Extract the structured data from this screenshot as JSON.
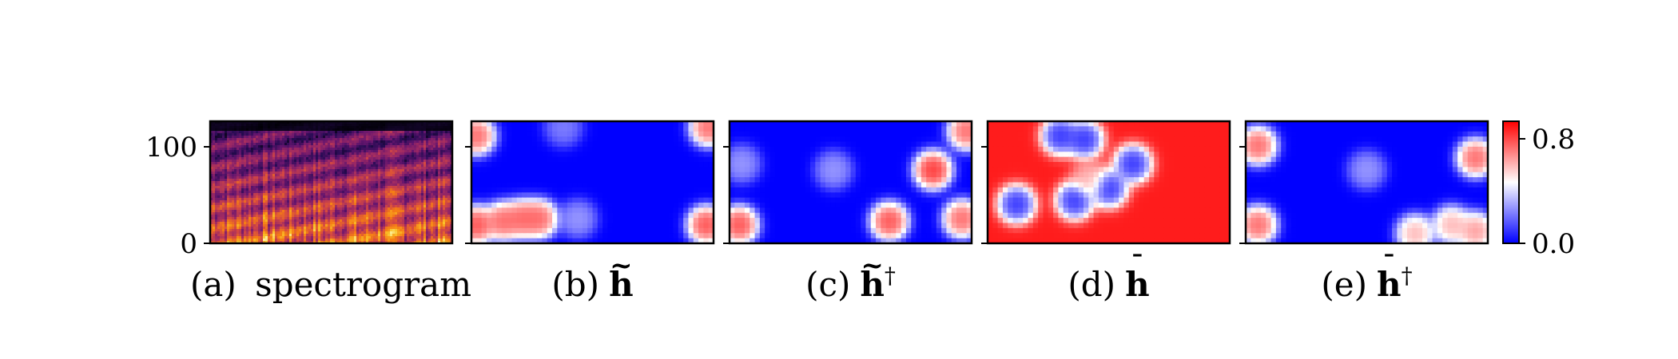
{
  "chart_data": [
    {
      "type": "heatmap",
      "panel": "a",
      "caption_prefix": "(a)",
      "caption_text": "spectrogram",
      "caption_math": "",
      "caption_sup": "",
      "y_ticks": [
        0,
        100
      ],
      "ylim": [
        0,
        128
      ],
      "colormap": "magma",
      "description_values": "mel spectrogram intensity (normalized)"
    },
    {
      "type": "heatmap",
      "panel": "b",
      "caption_prefix": "(b)",
      "caption_text": "",
      "caption_math": "h",
      "caption_accent": "~",
      "caption_sup": "",
      "colormap": "bwr",
      "blobs": [
        {
          "x": 0.02,
          "y": 0.12,
          "v": 0.8
        },
        {
          "x": 0.98,
          "y": 0.05,
          "v": 0.8
        },
        {
          "x": 0.02,
          "y": 0.85,
          "v": 0.85
        },
        {
          "x": 0.13,
          "y": 0.82,
          "v": 0.8
        },
        {
          "x": 0.21,
          "y": 0.8,
          "v": 0.8
        },
        {
          "x": 0.28,
          "y": 0.8,
          "v": 0.8
        },
        {
          "x": 0.44,
          "y": 0.8,
          "v": 0.3
        },
        {
          "x": 0.97,
          "y": 0.85,
          "v": 0.85
        },
        {
          "x": 0.38,
          "y": 0.05,
          "v": 0.25
        }
      ]
    },
    {
      "type": "heatmap",
      "panel": "c",
      "caption_prefix": "(c)",
      "caption_text": "",
      "caption_math": "h",
      "caption_accent": "~",
      "caption_sup": "†",
      "colormap": "bwr",
      "blobs": [
        {
          "x": 0.04,
          "y": 0.85,
          "v": 0.85
        },
        {
          "x": 0.98,
          "y": 0.08,
          "v": 0.8
        },
        {
          "x": 0.84,
          "y": 0.4,
          "v": 0.9
        },
        {
          "x": 0.66,
          "y": 0.82,
          "v": 0.85
        },
        {
          "x": 0.96,
          "y": 0.8,
          "v": 0.8
        },
        {
          "x": 0.43,
          "y": 0.4,
          "v": 0.3
        },
        {
          "x": 0.05,
          "y": 0.35,
          "v": 0.3
        }
      ]
    },
    {
      "type": "heatmap",
      "panel": "d",
      "caption_prefix": "(d)",
      "caption_text": "",
      "caption_math": "h",
      "caption_accent": "¯",
      "caption_sup": "",
      "colormap": "bwr",
      "background_value": 0.85,
      "blobs": [
        {
          "x": 0.12,
          "y": 0.68,
          "v": 0.0
        },
        {
          "x": 0.3,
          "y": 0.12,
          "v": 0.0
        },
        {
          "x": 0.4,
          "y": 0.15,
          "v": 0.0
        },
        {
          "x": 0.36,
          "y": 0.65,
          "v": 0.0
        },
        {
          "x": 0.5,
          "y": 0.55,
          "v": 0.0
        },
        {
          "x": 0.6,
          "y": 0.35,
          "v": 0.0
        },
        {
          "x": 0.42,
          "y": 0.48,
          "v": 0.55
        }
      ]
    },
    {
      "type": "heatmap",
      "panel": "e",
      "caption_prefix": "(e)",
      "caption_text": "",
      "caption_math": "h",
      "caption_accent": "¯",
      "caption_sup": "†",
      "colormap": "bwr",
      "blobs": [
        {
          "x": 0.05,
          "y": 0.2,
          "v": 0.8
        },
        {
          "x": 0.05,
          "y": 0.85,
          "v": 0.8
        },
        {
          "x": 0.95,
          "y": 0.3,
          "v": 0.8
        },
        {
          "x": 0.7,
          "y": 0.92,
          "v": 0.65
        },
        {
          "x": 0.85,
          "y": 0.85,
          "v": 0.65
        },
        {
          "x": 0.95,
          "y": 0.9,
          "v": 0.7
        },
        {
          "x": 0.5,
          "y": 0.4,
          "v": 0.3
        }
      ]
    }
  ],
  "colorbar": {
    "ticks": [
      "0.8",
      "0.0"
    ],
    "range": [
      0.0,
      0.9
    ],
    "colors": [
      "#0000ff",
      "#ffffff",
      "#ff0000"
    ]
  }
}
